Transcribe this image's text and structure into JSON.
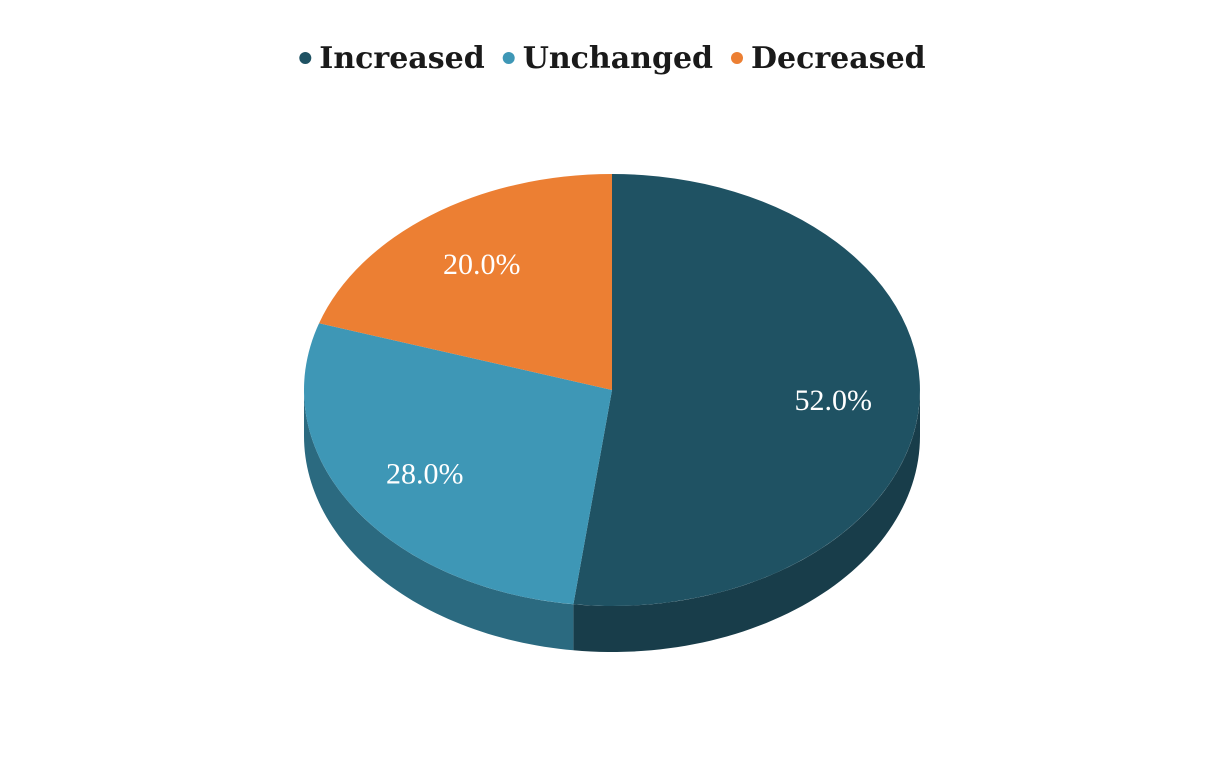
{
  "chart_data": {
    "type": "pie",
    "style": "3d",
    "categories": [
      "Increased",
      "Unchanged",
      "Decreased"
    ],
    "values": [
      52.0,
      28.0,
      20.0
    ],
    "labels": [
      "52.0%",
      "28.0%",
      "20.0%"
    ],
    "colors": [
      "#1F5263",
      "#3E97B6",
      "#EC7F33"
    ],
    "side_colors": [
      "#183D4A",
      "#2B6A80",
      "#B8621F"
    ],
    "legend_position": "top",
    "title": ""
  }
}
